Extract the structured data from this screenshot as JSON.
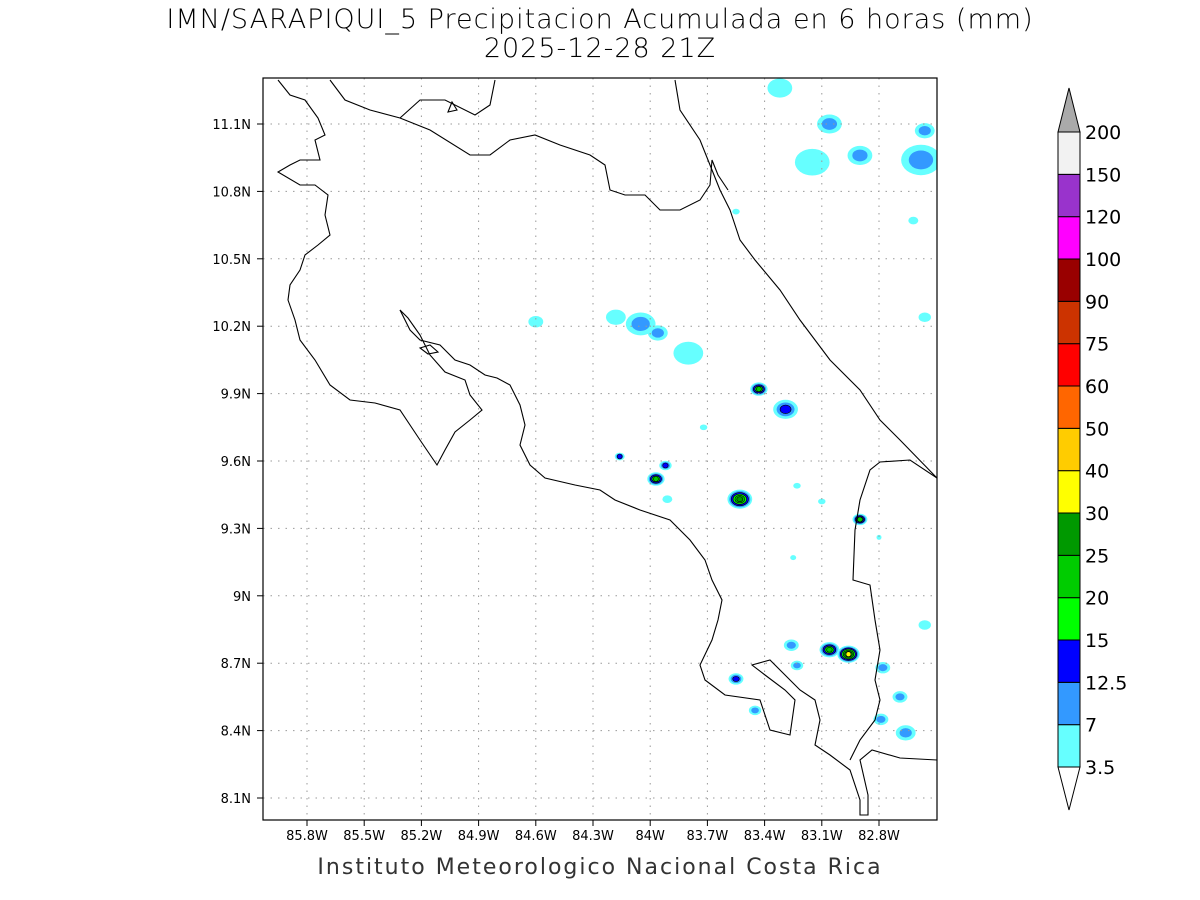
{
  "title": {
    "line1": "IMN/SARAPIQUI_5 Precipitacion Acumulada en 6 horas (mm)",
    "line2": "2025-12-28 21Z"
  },
  "credit": "Instituto Meteorologico Nacional Costa Rica",
  "map": {
    "lon_ticks": [
      "85.8W",
      "85.5W",
      "85.2W",
      "84.9W",
      "84.6W",
      "84.3W",
      "84W",
      "83.7W",
      "83.4W",
      "83.1W",
      "82.8W"
    ],
    "lat_ticks": [
      "11.1N",
      "10.8N",
      "10.5N",
      "10.2N",
      "9.9N",
      "9.6N",
      "9.3N",
      "9N",
      "8.7N",
      "8.4N",
      "8.1N"
    ],
    "lon_range_west": [
      86.0,
      82.55
    ],
    "lat_range": [
      11.3,
      8.05
    ],
    "precip_cells": [
      {
        "lon": 83.53,
        "lat": 9.43,
        "max_level": 6,
        "spread": 0.05
      },
      {
        "lon": 83.97,
        "lat": 9.52,
        "max_level": 5,
        "spread": 0.035
      },
      {
        "lon": 83.92,
        "lat": 9.58,
        "max_level": 3,
        "spread": 0.025
      },
      {
        "lon": 84.16,
        "lat": 9.62,
        "max_level": 3,
        "spread": 0.02
      },
      {
        "lon": 83.43,
        "lat": 9.92,
        "max_level": 5,
        "spread": 0.035
      },
      {
        "lon": 83.29,
        "lat": 9.83,
        "max_level": 3,
        "spread": 0.05
      },
      {
        "lon": 82.9,
        "lat": 9.34,
        "max_level": 5,
        "spread": 0.03
      },
      {
        "lon": 83.06,
        "lat": 8.76,
        "max_level": 5,
        "spread": 0.04
      },
      {
        "lon": 82.96,
        "lat": 8.74,
        "max_level": 7,
        "spread": 0.045
      },
      {
        "lon": 83.55,
        "lat": 8.63,
        "max_level": 3,
        "spread": 0.03
      },
      {
        "lon": 84.05,
        "lat": 10.21,
        "max_level": 2,
        "spread": 0.06
      },
      {
        "lon": 83.96,
        "lat": 10.17,
        "max_level": 2,
        "spread": 0.04
      },
      {
        "lon": 84.18,
        "lat": 10.24,
        "max_level": 1,
        "spread": 0.04
      },
      {
        "lon": 83.8,
        "lat": 10.08,
        "max_level": 1,
        "spread": 0.06
      },
      {
        "lon": 84.6,
        "lat": 10.22,
        "max_level": 1,
        "spread": 0.03
      },
      {
        "lon": 82.79,
        "lat": 8.45,
        "max_level": 2,
        "spread": 0.03
      },
      {
        "lon": 82.66,
        "lat": 8.39,
        "max_level": 2,
        "spread": 0.04
      },
      {
        "lon": 82.69,
        "lat": 8.55,
        "max_level": 2,
        "spread": 0.03
      },
      {
        "lon": 82.78,
        "lat": 8.68,
        "max_level": 2,
        "spread": 0.03
      },
      {
        "lon": 83.26,
        "lat": 8.78,
        "max_level": 2,
        "spread": 0.03
      },
      {
        "lon": 83.23,
        "lat": 8.69,
        "max_level": 2,
        "spread": 0.025
      },
      {
        "lon": 83.45,
        "lat": 8.49,
        "max_level": 2,
        "spread": 0.025
      },
      {
        "lon": 83.06,
        "lat": 11.1,
        "max_level": 2,
        "spread": 0.05
      },
      {
        "lon": 82.9,
        "lat": 10.96,
        "max_level": 2,
        "spread": 0.05
      },
      {
        "lon": 83.15,
        "lat": 10.93,
        "max_level": 1,
        "spread": 0.07
      },
      {
        "lon": 82.58,
        "lat": 10.94,
        "max_level": 2,
        "spread": 0.08
      },
      {
        "lon": 82.56,
        "lat": 11.07,
        "max_level": 2,
        "spread": 0.04
      },
      {
        "lon": 83.32,
        "lat": 11.26,
        "max_level": 1,
        "spread": 0.05
      },
      {
        "lon": 83.55,
        "lat": 10.71,
        "max_level": 1,
        "spread": 0.015
      },
      {
        "lon": 82.62,
        "lat": 10.67,
        "max_level": 1,
        "spread": 0.02
      },
      {
        "lon": 82.56,
        "lat": 10.24,
        "max_level": 1,
        "spread": 0.025
      },
      {
        "lon": 82.56,
        "lat": 8.87,
        "max_level": 1,
        "spread": 0.025
      },
      {
        "lon": 82.8,
        "lat": 9.26,
        "max_level": 1,
        "spread": 0.01
      },
      {
        "lon": 83.23,
        "lat": 9.49,
        "max_level": 1,
        "spread": 0.015
      },
      {
        "lon": 83.72,
        "lat": 9.75,
        "max_level": 1,
        "spread": 0.015
      },
      {
        "lon": 83.91,
        "lat": 9.43,
        "max_level": 1,
        "spread": 0.02
      },
      {
        "lon": 83.25,
        "lat": 9.17,
        "max_level": 1,
        "spread": 0.012
      },
      {
        "lon": 83.1,
        "lat": 9.42,
        "max_level": 1,
        "spread": 0.015
      }
    ]
  },
  "colorbar": {
    "labels": [
      "3.5",
      "7",
      "12.5",
      "15",
      "20",
      "25",
      "30",
      "40",
      "50",
      "60",
      "75",
      "90",
      "100",
      "120",
      "150",
      "200"
    ],
    "colors": [
      "#66ffff",
      "#3399ff",
      "#0000ff",
      "#00ff00",
      "#00cc00",
      "#009900",
      "#ffff00",
      "#ffcc00",
      "#ff6600",
      "#ff0000",
      "#cc3300",
      "#990000",
      "#ff00ff",
      "#9933cc",
      "#f2f2f2"
    ],
    "over_color": "#aaaaaa",
    "under_color": "#ffffff"
  }
}
